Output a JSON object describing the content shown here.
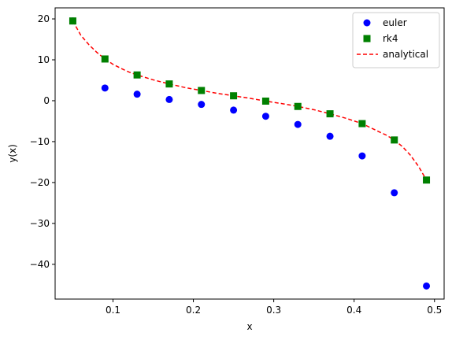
{
  "chart_data": {
    "type": "scatter",
    "title": "",
    "xlabel": "x",
    "ylabel": "y(x)",
    "xlim": [
      0.028,
      0.512
    ],
    "ylim": [
      -48.5,
      22.7
    ],
    "xticks": [
      0.1,
      0.2,
      0.3,
      0.4,
      0.5
    ],
    "xtick_labels": [
      "0.1",
      "0.2",
      "0.3",
      "0.4",
      "0.5"
    ],
    "yticks": [
      -40,
      -30,
      -20,
      -10,
      0,
      10,
      20
    ],
    "ytick_labels": [
      "−40",
      "−30",
      "−20",
      "−10",
      "0",
      "10",
      "20"
    ],
    "grid": false,
    "legend_position": "top-right",
    "series": [
      {
        "name": "euler",
        "kind": "markers",
        "marker": "circle",
        "color": "#0000ff",
        "x": [
          0.05,
          0.09,
          0.13,
          0.17,
          0.21,
          0.25,
          0.29,
          0.33,
          0.37,
          0.41,
          0.45,
          0.49
        ],
        "y": [
          19.5,
          3.1,
          1.6,
          0.3,
          -0.9,
          -2.3,
          -3.8,
          -5.8,
          -8.7,
          -13.5,
          -22.5,
          -45.3
        ]
      },
      {
        "name": "rk4",
        "kind": "markers",
        "marker": "square",
        "color": "#008000",
        "x": [
          0.05,
          0.09,
          0.13,
          0.17,
          0.21,
          0.25,
          0.29,
          0.33,
          0.37,
          0.41,
          0.45,
          0.49
        ],
        "y": [
          19.5,
          10.2,
          6.3,
          4.1,
          2.5,
          1.2,
          -0.1,
          -1.4,
          -3.2,
          -5.6,
          -9.6,
          -19.4
        ]
      },
      {
        "name": "analytical",
        "kind": "line",
        "dash": "dashed",
        "color": "#ff0000",
        "x": [
          0.05,
          0.06,
          0.07,
          0.08,
          0.09,
          0.1,
          0.11,
          0.12,
          0.13,
          0.15,
          0.17,
          0.19,
          0.21,
          0.23,
          0.25,
          0.27,
          0.29,
          0.31,
          0.33,
          0.35,
          0.37,
          0.39,
          0.41,
          0.43,
          0.44,
          0.45,
          0.46,
          0.47,
          0.48,
          0.49
        ],
        "y": [
          19.5,
          16.0,
          13.7,
          11.8,
          10.2,
          8.9,
          7.9,
          7.0,
          6.3,
          5.1,
          4.1,
          3.2,
          2.5,
          1.8,
          1.2,
          0.6,
          -0.1,
          -0.7,
          -1.4,
          -2.2,
          -3.2,
          -4.3,
          -5.6,
          -7.5,
          -8.4,
          -9.6,
          -11.2,
          -13.3,
          -16.0,
          -19.4
        ]
      }
    ]
  }
}
